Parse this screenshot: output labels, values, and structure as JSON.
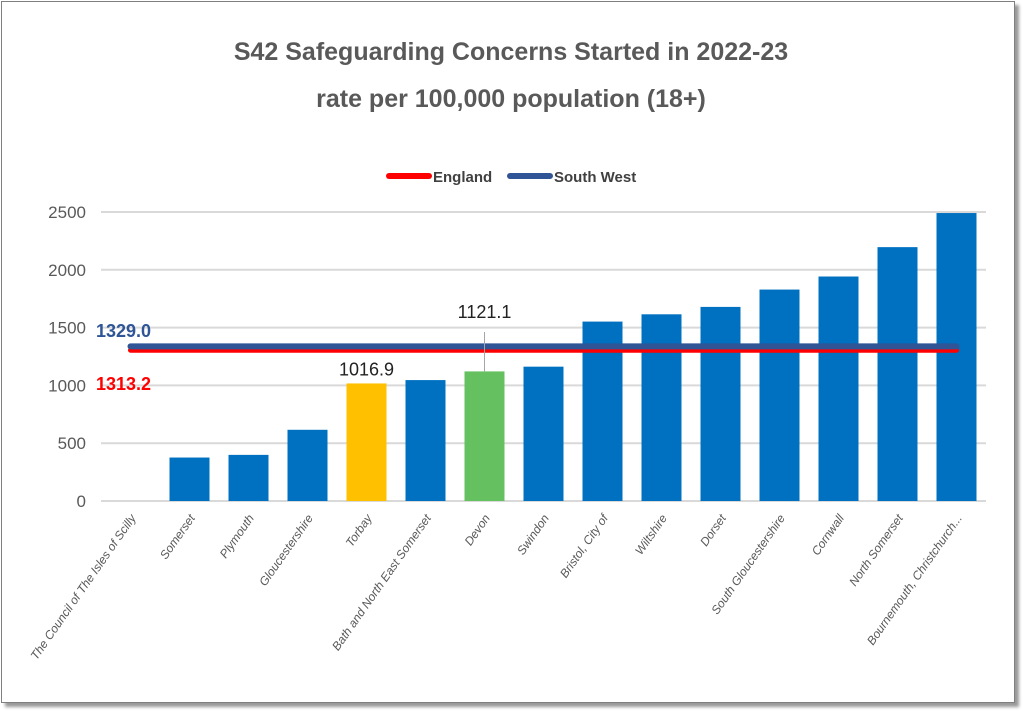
{
  "chart_data": {
    "type": "bar",
    "title": "S42 Safeguarding Concerns Started in 2022-23",
    "subtitle": "rate per 100,000 population (18+)",
    "xlabel": "",
    "ylabel": "",
    "ylim": [
      0,
      2500
    ],
    "yticks": [
      "0",
      "500",
      "1000",
      "1500",
      "2000",
      "2500"
    ],
    "grid": true,
    "legend_position": "top",
    "categories": [
      "The Council of The Isles of Scilly",
      "Somerset",
      "Plymouth",
      "Gloucestershire",
      "Torbay",
      "Bath and North East Somerset",
      "Devon",
      "Swindon",
      "Bristol, City of",
      "Wiltshire",
      "Dorset",
      "South Gloucestershire",
      "Cornwall",
      "North Somerset",
      "Bournemouth, Christchurch..."
    ],
    "values": [
      0,
      376,
      399,
      616,
      1016.9,
      1046,
      1121.1,
      1162,
      1552,
      1615,
      1679,
      1829,
      1942,
      2196,
      2491
    ],
    "bar_colors": [
      "#0070c0",
      "#0070c0",
      "#0070c0",
      "#0070c0",
      "#ffc000",
      "#0070c0",
      "#65c060",
      "#0070c0",
      "#0070c0",
      "#0070c0",
      "#0070c0",
      "#0070c0",
      "#0070c0",
      "#0070c0",
      "#0070c0"
    ],
    "data_labels": [
      {
        "category": "Torbay",
        "text": "1016.9"
      },
      {
        "category": "Devon",
        "text": "1121.1"
      }
    ],
    "reference_lines": [
      {
        "name": "England",
        "value": 1313.2,
        "label": "1313.2",
        "color": "#ff0000"
      },
      {
        "name": "South West",
        "value": 1329.0,
        "label": "1329.0",
        "color": "#2f5597"
      }
    ]
  }
}
